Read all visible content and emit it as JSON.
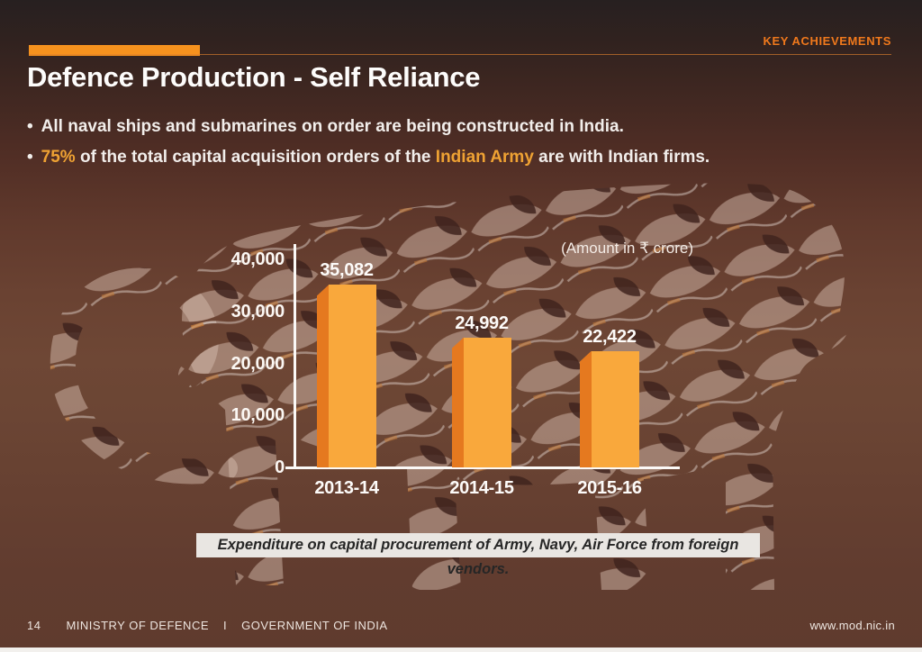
{
  "header": {
    "tag": "KEY ACHIEVEMENTS"
  },
  "title": "Defence Production - Self Reliance",
  "bullets": [
    {
      "marker": "•",
      "segments": [
        {
          "text": "All naval ships and submarines on order are being constructed in India.",
          "accent": false
        }
      ]
    },
    {
      "marker": "•",
      "segments": [
        {
          "text": "75%",
          "accent": true
        },
        {
          "text": " of the total capital acquisition orders of the ",
          "accent": false
        },
        {
          "text": "Indian Army",
          "accent": true
        },
        {
          "text": " are with Indian firms.",
          "accent": false
        }
      ]
    }
  ],
  "chart_data": {
    "type": "bar",
    "title": "Expenditure on capital procurement from foreign vendors",
    "note": "(Amount in ₹ crore)",
    "categories": [
      "2013-14",
      "2014-15",
      "2015-16"
    ],
    "values": [
      35082,
      24992,
      22422
    ],
    "value_labels": [
      "35,082",
      "24,992",
      "22,422"
    ],
    "ylabel": "",
    "xlabel": "",
    "ylim": [
      0,
      40000
    ],
    "yticks": [
      {
        "value": 0,
        "label": "0"
      },
      {
        "value": 10000,
        "label": "10,000"
      },
      {
        "value": 20000,
        "label": "20,000"
      },
      {
        "value": 30000,
        "label": "30,000"
      },
      {
        "value": 40000,
        "label": "40,000"
      }
    ],
    "grid": false,
    "legend": false,
    "bar_color": "#F9A83C",
    "bar_side_color": "#E5791F"
  },
  "caption": "Expenditure on capital procurement of Army, Navy, Air Force from foreign vendors.",
  "footer": {
    "page": "14",
    "ministry": "MINISTRY OF DEFENCE",
    "separator": "I",
    "government": "GOVERNMENT OF INDIA",
    "website": "www.mod.nic.in"
  },
  "colors": {
    "accent_orange": "#F6921E",
    "accent_amber": "#EFA233",
    "heading_orange": "#F0791C"
  }
}
